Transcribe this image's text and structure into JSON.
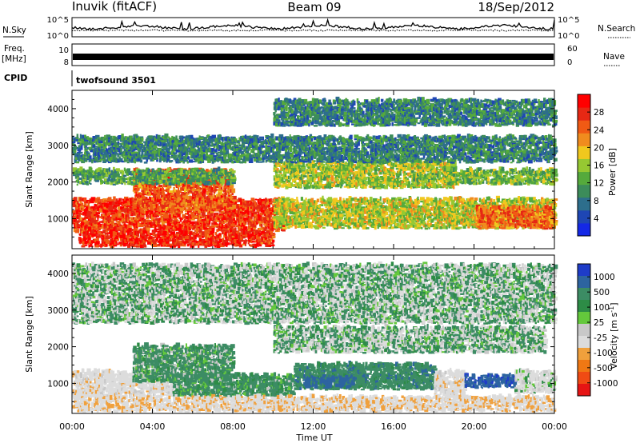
{
  "header": {
    "station": "Inuvik (fitACF)",
    "beam": "Beam 09",
    "date": "18/Sep/2012"
  },
  "info_panels": {
    "noise_sky_label": "N.Sky",
    "noise_search_label": "N.Search",
    "noise_ticks": [
      "10^5",
      "10^0"
    ],
    "freq_label_1": "Freq.",
    "freq_label_2": "[MHz]",
    "freq_ticks": [
      "10",
      "8"
    ],
    "nave_label": "Nave",
    "nave_ticks": [
      "60",
      "0"
    ],
    "cpid_label": "CPID",
    "cpid_value": "twofsound 3501"
  },
  "colors": {
    "power_scale": [
      "#1428e6",
      "#1e46b4",
      "#2d6e8c",
      "#3c8c5a",
      "#55aa3c",
      "#96c832",
      "#f0c81e",
      "#f08c1e",
      "#f05a14",
      "#e62814",
      "#ff0000"
    ],
    "velocity_scale": [
      "#1e3cc8",
      "#2d64a0",
      "#3c8c64",
      "#2d8c46",
      "#64c83c",
      "#c8c8c8",
      "#dcdcdc",
      "#f0a03c",
      "#f07814",
      "#f04b14",
      "#e61414"
    ]
  },
  "chart_data": [
    {
      "type": "heatmap",
      "title": "",
      "xlabel": "Time UT",
      "ylabel": "Slant Range [km]",
      "x_ticks": [
        "00:00",
        "04:00",
        "08:00",
        "12:00",
        "16:00",
        "20:00",
        "00:00"
      ],
      "xlim_hours": [
        0,
        24
      ],
      "ylim": [
        180,
        4500
      ],
      "y_ticks": [
        1000,
        2000,
        3000,
        4000
      ],
      "colorbar": {
        "label": "Power [dB]",
        "ticks": [
          4,
          8,
          12,
          16,
          20,
          24,
          28
        ],
        "range": [
          0,
          32
        ]
      },
      "bands": [
        {
          "t": [
            0,
            10.5
          ],
          "r": [
            600,
            1500
          ],
          "value": 27
        },
        {
          "t": [
            3,
            8
          ],
          "r": [
            1200,
            2300
          ],
          "value": 25
        },
        {
          "t": [
            0.3,
            10
          ],
          "r": [
            200,
            600
          ],
          "value": 28
        },
        {
          "t": [
            10,
            24
          ],
          "r": [
            700,
            1500
          ],
          "value": 17
        },
        {
          "t": [
            10,
            19
          ],
          "r": [
            1800,
            2500
          ],
          "value": 16
        },
        {
          "t": [
            18.5,
            24
          ],
          "r": [
            1900,
            2300
          ],
          "value": 14
        },
        {
          "t": [
            20,
            24
          ],
          "r": [
            700,
            1300
          ],
          "value": 24
        },
        {
          "t": [
            0,
            8
          ],
          "r": [
            1900,
            2300
          ],
          "value": 12
        },
        {
          "t": [
            0,
            24
          ],
          "r": [
            2500,
            3200
          ],
          "value": 9
        },
        {
          "t": [
            10,
            24
          ],
          "r": [
            3500,
            4200
          ],
          "value": 9
        }
      ]
    },
    {
      "type": "heatmap",
      "title": "",
      "xlabel": "Time UT",
      "ylabel": "Slant Range [km]",
      "x_ticks": [
        "00:00",
        "04:00",
        "08:00",
        "12:00",
        "16:00",
        "20:00",
        "00:00"
      ],
      "xlim_hours": [
        0,
        24
      ],
      "ylim": [
        180,
        4500
      ],
      "y_ticks": [
        1000,
        2000,
        3000,
        4000
      ],
      "colorbar": {
        "label": "Velocity [m s^-1]",
        "ticks": [
          1000,
          500,
          100,
          25,
          -25,
          -100,
          -500,
          -1000
        ]
      },
      "bands": [
        {
          "t": [
            0,
            5
          ],
          "r": [
            600,
            1300
          ],
          "value": -300
        },
        {
          "t": [
            3,
            8
          ],
          "r": [
            1000,
            2000
          ],
          "value": 150
        },
        {
          "t": [
            5,
            11
          ],
          "r": [
            600,
            1200
          ],
          "value": 200
        },
        {
          "t": [
            11,
            18
          ],
          "r": [
            800,
            1500
          ],
          "value": 300
        },
        {
          "t": [
            11.5,
            14
          ],
          "r": [
            850,
            1150
          ],
          "value": 700
        },
        {
          "t": [
            10,
            23.5
          ],
          "r": [
            1800,
            2500
          ],
          "value": 0
        },
        {
          "t": [
            18,
            19.5
          ],
          "r": [
            500,
            1300
          ],
          "value": -300
        },
        {
          "t": [
            19.5,
            22
          ],
          "r": [
            850,
            1200
          ],
          "value": 900
        },
        {
          "t": [
            22,
            24
          ],
          "r": [
            700,
            1300
          ],
          "value": -200
        },
        {
          "t": [
            0,
            24
          ],
          "r": [
            200,
            600
          ],
          "value": -400
        },
        {
          "t": [
            0,
            24
          ],
          "r": [
            2600,
            4200
          ],
          "value": 0
        }
      ]
    }
  ]
}
